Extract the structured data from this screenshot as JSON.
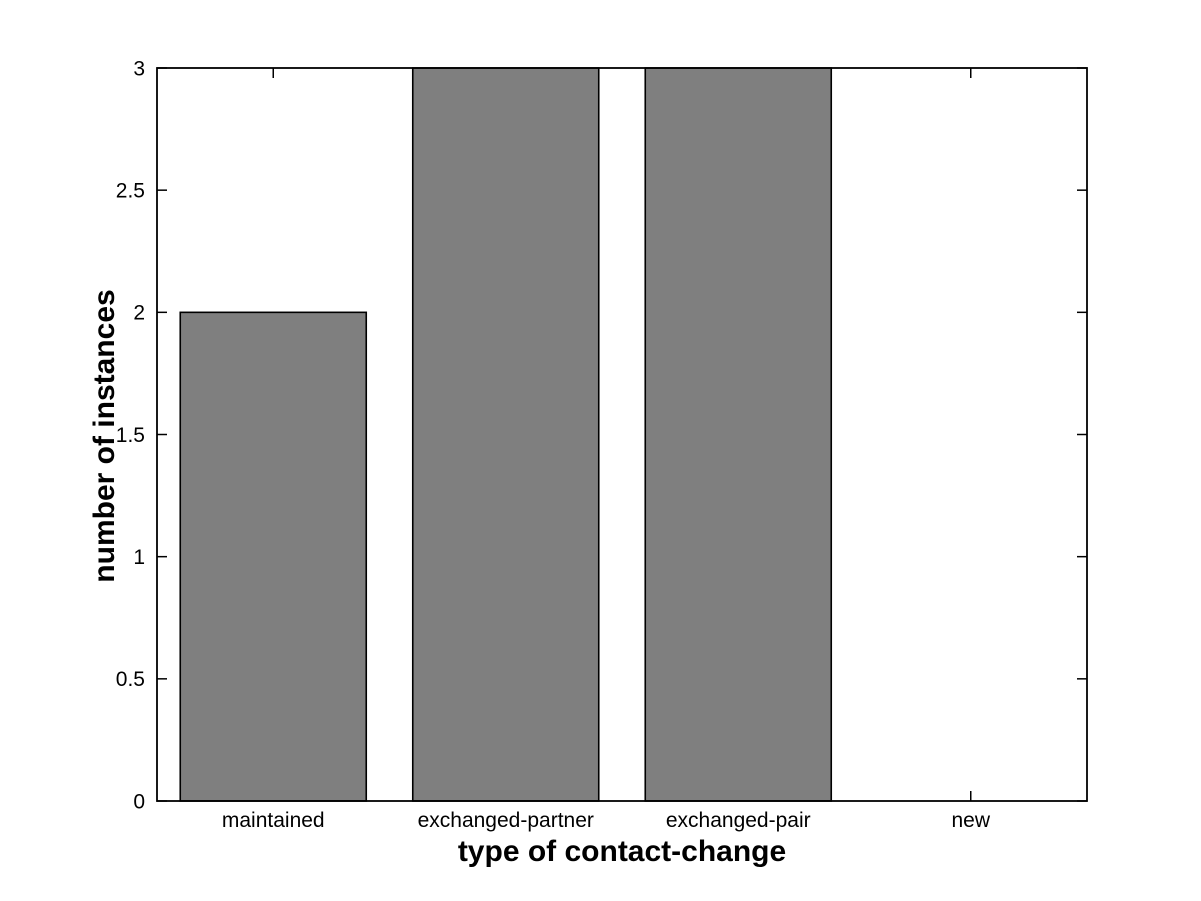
{
  "figure": {
    "background": "#ffffff"
  },
  "chart_data": {
    "type": "bar",
    "title": "",
    "categories": [
      "maintained",
      "exchanged-partner",
      "exchanged-pair",
      "new"
    ],
    "values": [
      2,
      3,
      3,
      0
    ],
    "xlabel": "type of contact-change",
    "ylabel": "number of instances",
    "ylim": [
      0,
      3
    ],
    "yticks": [
      0,
      0.5,
      1,
      1.5,
      2,
      2.5,
      3
    ],
    "ytick_labels": [
      "0",
      "0.5",
      "1",
      "1.5",
      "2",
      "2.5",
      "3"
    ],
    "bar_width_fraction": 0.8,
    "bar_fill_color": "#7f7f7f",
    "bar_edge_color": "#000000",
    "axis_color": "#000000",
    "text_color": "#000000",
    "grid": false,
    "box": true,
    "tick_direction": "in",
    "legend_position": "none"
  }
}
